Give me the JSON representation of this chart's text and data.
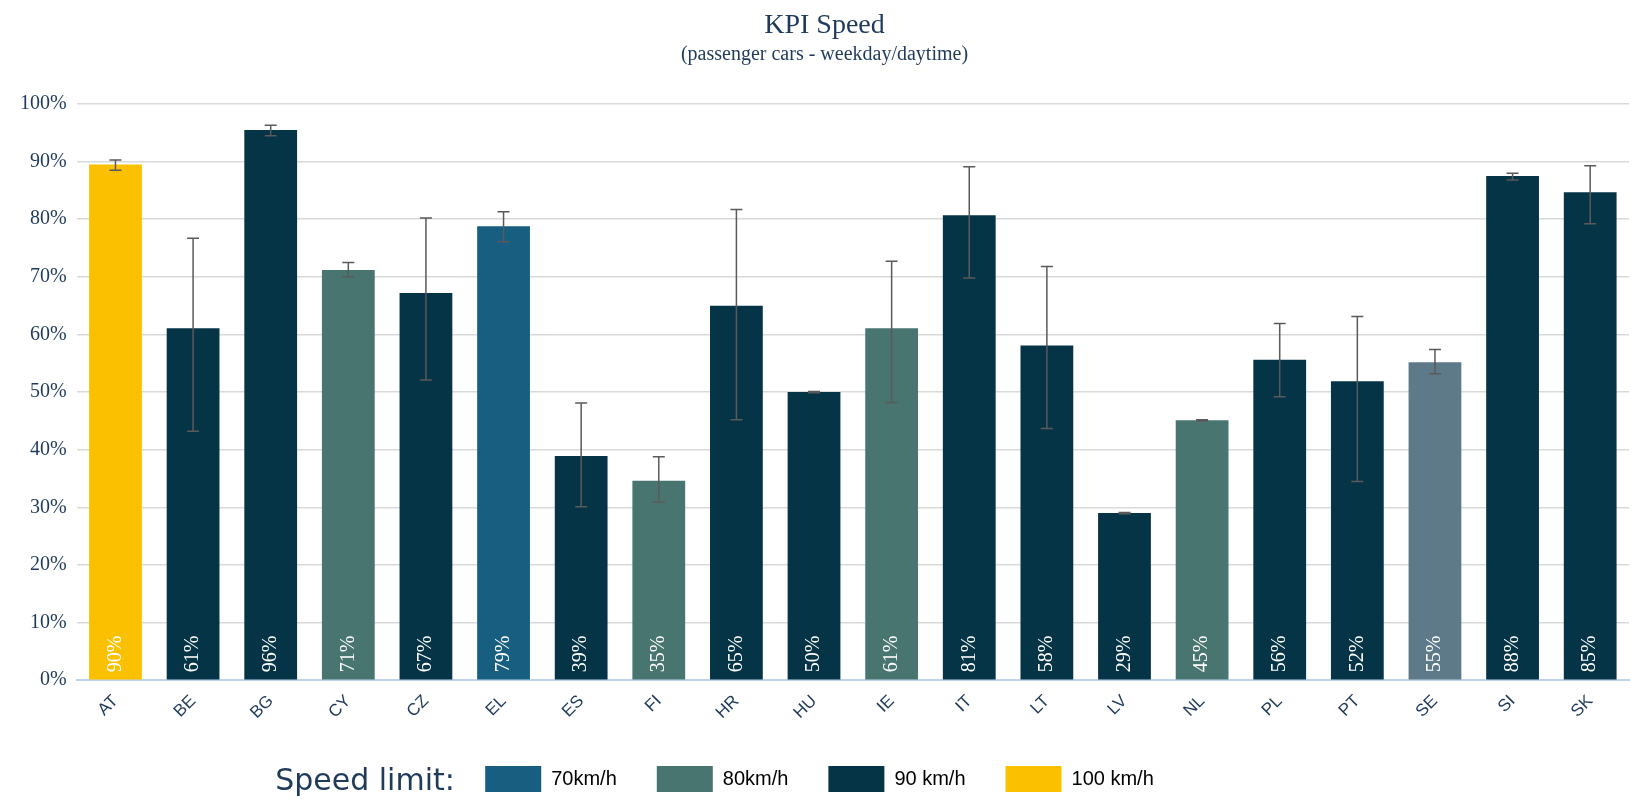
{
  "chart_data": {
    "type": "bar",
    "title": "KPI Speed",
    "subtitle": "(passenger cars - weekday/daytime)",
    "legend_title": "Speed limit:",
    "categories": [
      "AT",
      "BE",
      "BG",
      "CY",
      "CZ",
      "EL",
      "ES",
      "FI",
      "HR",
      "HU",
      "IE",
      "IT",
      "LT",
      "LV",
      "NL",
      "PL",
      "PT",
      "SE",
      "SI",
      "SK"
    ],
    "series": [
      {
        "name": "70km/h",
        "color": "#175e80",
        "values": [
          null,
          null,
          null,
          null,
          null,
          78.8,
          null,
          null,
          null,
          null,
          null,
          null,
          null,
          null,
          null,
          null,
          null,
          null,
          null,
          null
        ],
        "errors": [
          null,
          null,
          null,
          null,
          null,
          [
            76.1,
            81.3
          ],
          null,
          null,
          null,
          null,
          null,
          null,
          null,
          null,
          null,
          null,
          null,
          null,
          null,
          null
        ],
        "value_labels": [
          null,
          null,
          null,
          null,
          null,
          "79%",
          null,
          null,
          null,
          null,
          null,
          null,
          null,
          null,
          null,
          null,
          null,
          null,
          null,
          null
        ]
      },
      {
        "name": "80km/h",
        "color": "#487570",
        "colors": [
          null,
          null,
          null,
          "#487570",
          null,
          null,
          null,
          "#487570",
          null,
          null,
          "#487570",
          null,
          null,
          null,
          "#487570",
          null,
          null,
          "#5e7a88",
          null,
          null
        ],
        "values": [
          null,
          null,
          null,
          71.2,
          null,
          null,
          null,
          34.6,
          null,
          null,
          61.1,
          null,
          null,
          null,
          45.1,
          null,
          null,
          55.2,
          null,
          null
        ],
        "errors": [
          null,
          null,
          null,
          [
            70.0,
            72.5
          ],
          null,
          null,
          null,
          [
            30.9,
            38.8
          ],
          null,
          null,
          [
            48.2,
            72.7
          ],
          null,
          null,
          null,
          [
            45.0,
            45.2
          ],
          null,
          null,
          [
            53.2,
            57.4
          ],
          null,
          null
        ],
        "value_labels": [
          null,
          null,
          null,
          "71%",
          null,
          null,
          null,
          "35%",
          null,
          null,
          "61%",
          null,
          null,
          null,
          "45%",
          null,
          null,
          "55%",
          null,
          null
        ]
      },
      {
        "name": "90 km/h",
        "color": "#053447",
        "values": [
          null,
          61.1,
          95.5,
          null,
          67.2,
          null,
          38.9,
          null,
          65.0,
          50.0,
          null,
          80.7,
          58.1,
          29.0,
          null,
          55.6,
          51.9,
          null,
          87.5,
          84.7
        ],
        "errors": [
          null,
          [
            43.2,
            76.7
          ],
          [
            94.5,
            96.3
          ],
          null,
          [
            52.1,
            80.2
          ],
          null,
          [
            30.1,
            48.1
          ],
          null,
          [
            45.2,
            81.7
          ],
          [
            49.9,
            50.1
          ],
          null,
          [
            69.8,
            89.1
          ],
          [
            43.7,
            71.8
          ],
          [
            28.9,
            29.1
          ],
          null,
          [
            49.2,
            61.9
          ],
          [
            34.5,
            63.1
          ],
          null,
          [
            86.8,
            88.0
          ],
          [
            79.2,
            89.3
          ]
        ],
        "value_labels": [
          null,
          "61%",
          "96%",
          null,
          "67%",
          null,
          "39%",
          null,
          "65%",
          "50%",
          null,
          "81%",
          "58%",
          "29%",
          null,
          "56%",
          "52%",
          null,
          "88%",
          "85%"
        ]
      },
      {
        "name": "100 km/h",
        "color": "#fbc100",
        "values": [
          89.5,
          null,
          null,
          null,
          null,
          null,
          null,
          null,
          null,
          null,
          null,
          null,
          null,
          null,
          null,
          null,
          null,
          null,
          null,
          null
        ],
        "errors": [
          [
            88.5,
            90.3
          ],
          null,
          null,
          null,
          null,
          null,
          null,
          null,
          null,
          null,
          null,
          null,
          null,
          null,
          null,
          null,
          null,
          null,
          null,
          null
        ],
        "value_labels": [
          "90%",
          null,
          null,
          null,
          null,
          null,
          null,
          null,
          null,
          null,
          null,
          null,
          null,
          null,
          null,
          null,
          null,
          null,
          null,
          null
        ]
      }
    ],
    "ylim": [
      0,
      100
    ],
    "yticks": [
      {
        "value": 0,
        "label": "0%"
      },
      {
        "value": 10,
        "label": "10%"
      },
      {
        "value": 20,
        "label": "20%"
      },
      {
        "value": 30,
        "label": "30%"
      },
      {
        "value": 40,
        "label": "40%"
      },
      {
        "value": 50,
        "label": "50%"
      },
      {
        "value": 60,
        "label": "60%"
      },
      {
        "value": 70,
        "label": "70%"
      },
      {
        "value": 80,
        "label": "80%"
      },
      {
        "value": 90,
        "label": "90%"
      },
      {
        "value": 100,
        "label": "100%"
      }
    ],
    "grid": "y",
    "legend": "bottom"
  }
}
